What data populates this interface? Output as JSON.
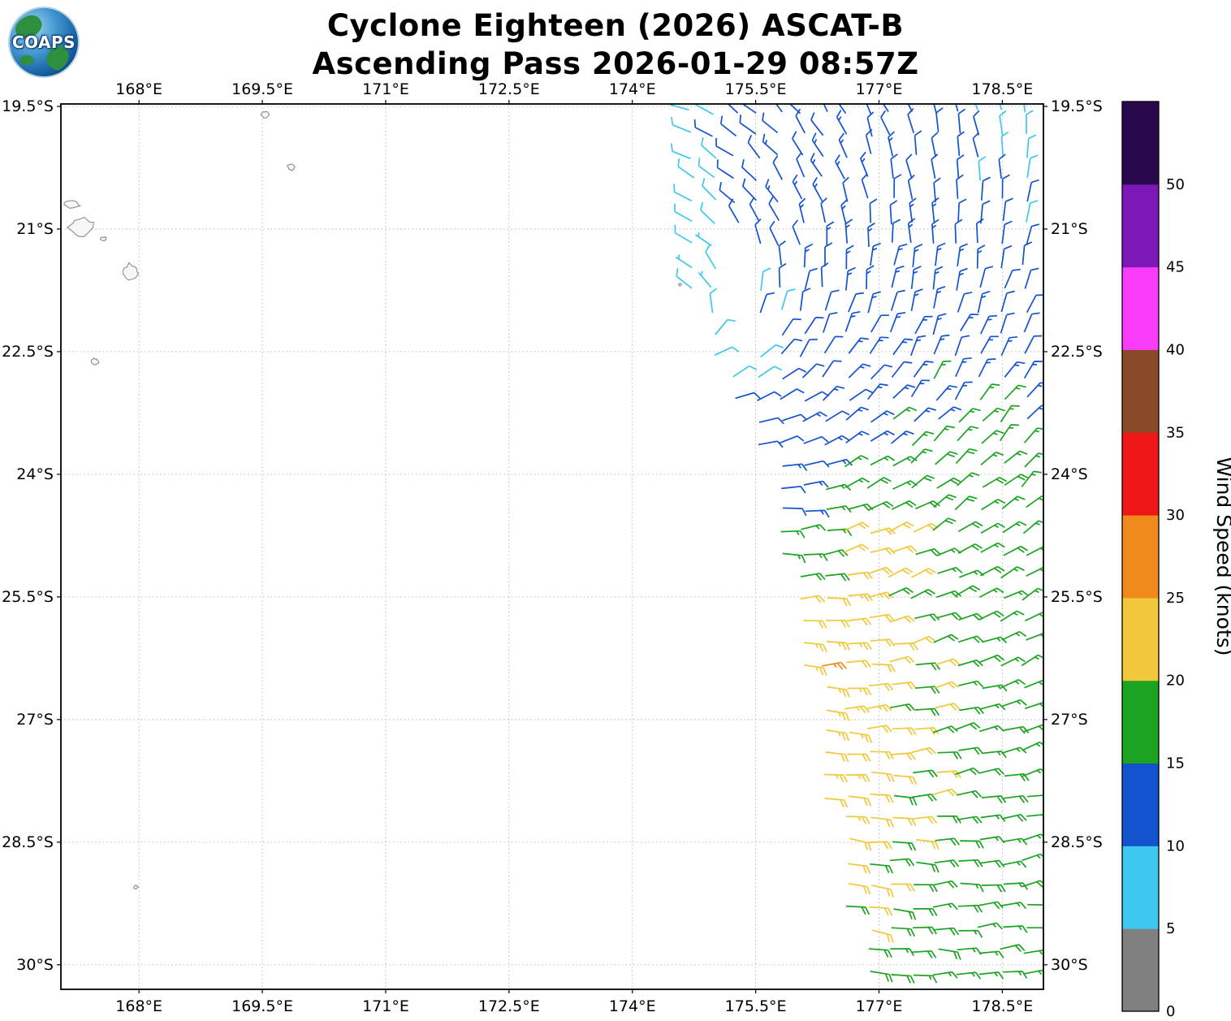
{
  "header": {
    "logo_text": "COAPS",
    "title_line1": "Cyclone Eighteen (2026) ASCAT-B",
    "title_line2": "Ascending Pass 2026-01-29 08:57Z"
  },
  "chart_data": {
    "type": "wind_barb_map",
    "title": "Cyclone Eighteen (2026) ASCAT-B",
    "subtitle": "Ascending Pass 2026-01-29 08:57Z",
    "storm_name": "Cyclone Eighteen",
    "storm_year": "2026",
    "satellite": "ASCAT-B",
    "pass_type": "Ascending Pass",
    "pass_time_utc": "2026-01-29 08:57Z",
    "lon_range": [
      167.05,
      179.0
    ],
    "lat_range": [
      19.47,
      30.3
    ],
    "grid_dashed": true,
    "axes": {
      "lon_ticks": [
        {
          "value": 168.0,
          "label": "168°E"
        },
        {
          "value": 169.5,
          "label": "169.5°E"
        },
        {
          "value": 171.0,
          "label": "171°E"
        },
        {
          "value": 172.5,
          "label": "172.5°E"
        },
        {
          "value": 174.0,
          "label": "174°E"
        },
        {
          "value": 175.5,
          "label": "175.5°E"
        },
        {
          "value": 177.0,
          "label": "177°E"
        },
        {
          "value": 178.5,
          "label": "178.5°E"
        }
      ],
      "lat_ticks": [
        {
          "value": 19.5,
          "label": "19.5°S"
        },
        {
          "value": 21.0,
          "label": "21°S"
        },
        {
          "value": 22.5,
          "label": "22.5°S"
        },
        {
          "value": 24.0,
          "label": "24°S"
        },
        {
          "value": 25.5,
          "label": "25.5°S"
        },
        {
          "value": 27.0,
          "label": "27°S"
        },
        {
          "value": 28.5,
          "label": "28.5°S"
        },
        {
          "value": 30.0,
          "label": "30°S"
        }
      ]
    },
    "colorbar": {
      "label": "Wind Speed (knots)",
      "ticks": [
        0,
        5,
        10,
        15,
        20,
        25,
        30,
        35,
        40,
        45,
        50
      ],
      "vmax": 55,
      "segments": [
        {
          "from": 0,
          "to": 5,
          "color": "#808080"
        },
        {
          "from": 5,
          "to": 10,
          "color": "#3dc8ef"
        },
        {
          "from": 10,
          "to": 15,
          "color": "#1353cd"
        },
        {
          "from": 15,
          "to": 20,
          "color": "#1ca321"
        },
        {
          "from": 20,
          "to": 25,
          "color": "#f0c83a"
        },
        {
          "from": 25,
          "to": 30,
          "color": "#f08a1c"
        },
        {
          "from": 30,
          "to": 35,
          "color": "#ee1616"
        },
        {
          "from": 35,
          "to": 40,
          "color": "#8a4a2a"
        },
        {
          "from": 40,
          "to": 45,
          "color": "#f93cf9"
        },
        {
          "from": 45,
          "to": 50,
          "color": "#7d18b8"
        },
        {
          "from": 50,
          "to": 55,
          "color": "#29084e"
        }
      ]
    },
    "wind_field": {
      "units": "knots",
      "barb_spacing_deg": 0.27,
      "swath_lon_min": 174.45,
      "swath_lon_max": 178.92,
      "swath_left_boundary": [
        [
          19.47,
          174.45
        ],
        [
          20.4,
          174.55
        ],
        [
          20.9,
          174.62
        ],
        [
          21.8,
          174.7
        ],
        [
          22.3,
          174.8
        ],
        [
          22.7,
          175.0
        ],
        [
          23.1,
          175.2
        ],
        [
          23.6,
          175.45
        ],
        [
          24.1,
          175.6
        ],
        [
          25.0,
          175.78
        ],
        [
          26.0,
          175.95
        ],
        [
          27.0,
          176.1
        ],
        [
          28.0,
          176.3
        ],
        [
          29.0,
          176.5
        ],
        [
          30.3,
          176.72
        ]
      ],
      "data_gaps": [
        {
          "lat_min": 20.95,
          "lat_max": 22.6,
          "lon_min": 175.05,
          "lon_max": 175.55
        }
      ],
      "circulation_center": {
        "lon": 174.6,
        "lat": 22.2
      },
      "inflow_deg": 22,
      "speed_grid": {
        "lats": [
          19.5,
          20.5,
          21.5,
          22.5,
          23.5,
          24.5,
          25.5,
          26.5,
          27.5,
          28.5,
          29.5,
          30.3
        ],
        "lons": [
          174.4,
          175.2,
          176.0,
          176.8,
          177.6,
          178.4,
          179.0
        ],
        "knots": [
          [
            8,
            12,
            12,
            12,
            11,
            8,
            8
          ],
          [
            7,
            11,
            13,
            13,
            12,
            11,
            9
          ],
          [
            7,
            7,
            12,
            13,
            13,
            12,
            11
          ],
          [
            7,
            8,
            11,
            13,
            13,
            13,
            12
          ],
          [
            10,
            11,
            12,
            13,
            16,
            17,
            16
          ],
          [
            12,
            12,
            13,
            21,
            18,
            17,
            16
          ],
          [
            13,
            16,
            20,
            22,
            19,
            17,
            16
          ],
          [
            14,
            18,
            26,
            22,
            20,
            17,
            16
          ],
          [
            15,
            19,
            23,
            22,
            20,
            17,
            16
          ],
          [
            15,
            19,
            21,
            21,
            19,
            17,
            17
          ],
          [
            15,
            18,
            20,
            20,
            18,
            17,
            16
          ],
          [
            15,
            17,
            18,
            18,
            17,
            16,
            16
          ]
        ]
      }
    },
    "coastlines": [
      {
        "lon": 167.18,
        "lat": 20.7,
        "rx": 0.1,
        "ry": 0.05,
        "seed": 3
      },
      {
        "lon": 167.3,
        "lat": 20.98,
        "rx": 0.15,
        "ry": 0.13,
        "seed": 7
      },
      {
        "lon": 167.57,
        "lat": 21.12,
        "rx": 0.04,
        "ry": 0.03,
        "seed": 11
      },
      {
        "lon": 167.9,
        "lat": 21.52,
        "rx": 0.11,
        "ry": 0.1,
        "seed": 13
      },
      {
        "lon": 167.46,
        "lat": 22.62,
        "rx": 0.05,
        "ry": 0.04,
        "seed": 17
      },
      {
        "lon": 169.53,
        "lat": 19.6,
        "rx": 0.055,
        "ry": 0.045,
        "seed": 19
      },
      {
        "lon": 169.85,
        "lat": 20.24,
        "rx": 0.05,
        "ry": 0.04,
        "seed": 23
      },
      {
        "lon": 174.58,
        "lat": 21.68,
        "rx": 0.017,
        "ry": 0.015,
        "seed": 29
      },
      {
        "lon": 167.96,
        "lat": 29.05,
        "rx": 0.028,
        "ry": 0.022,
        "seed": 31
      }
    ]
  }
}
